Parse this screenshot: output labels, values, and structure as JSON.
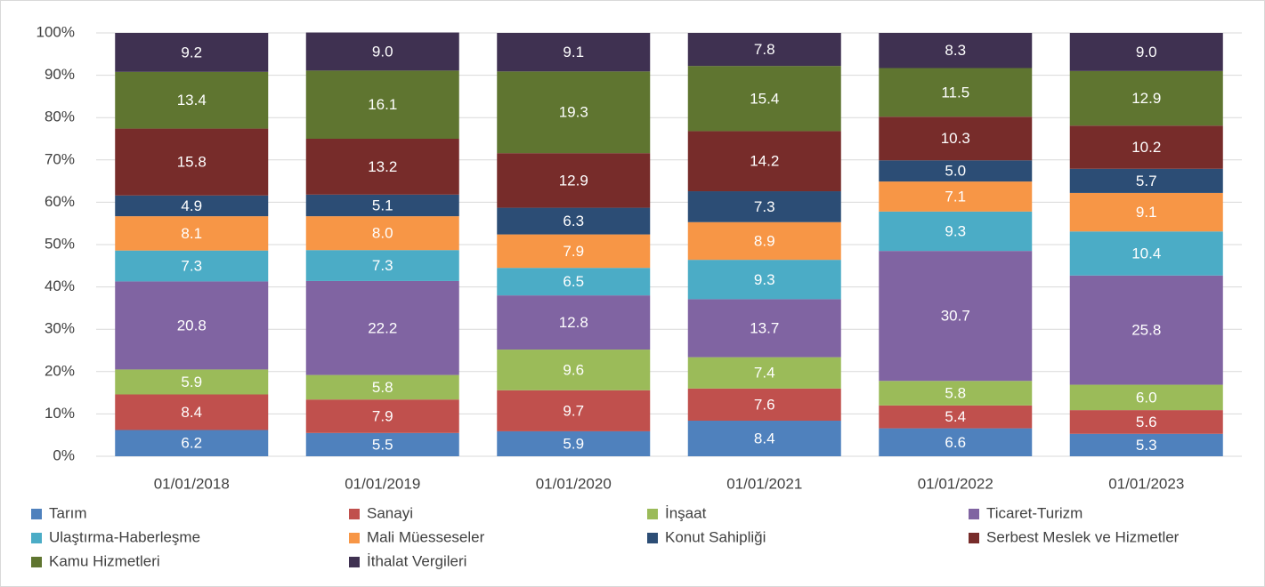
{
  "chart_data": {
    "type": "stacked_bar",
    "categories": [
      "01/01/2018",
      "01/01/2019",
      "01/01/2020",
      "01/01/2021",
      "01/01/2022",
      "01/01/2023"
    ],
    "series": [
      {
        "name": "Tarım",
        "color": "#4f81bd",
        "values": [
          6.2,
          5.5,
          5.9,
          8.4,
          6.6,
          5.3
        ],
        "value_labels": [
          "6.2",
          "5.5",
          "5.9",
          "8.4",
          "6.6",
          "5.3"
        ]
      },
      {
        "name": "Sanayi",
        "color": "#c0504d",
        "values": [
          8.4,
          7.9,
          9.7,
          7.6,
          5.4,
          5.6
        ],
        "value_labels": [
          "8.4",
          "7.9",
          "9.7",
          "7.6",
          "5.4",
          "5.6"
        ]
      },
      {
        "name": "İnşaat",
        "color": "#9bbb59",
        "values": [
          5.9,
          5.8,
          9.6,
          7.4,
          5.8,
          6
        ],
        "value_labels": [
          "5.9",
          "5.8",
          "9.6",
          "7.4",
          "5.8",
          "6.0"
        ]
      },
      {
        "name": "Ticaret-Turizm",
        "color": "#8064a2",
        "values": [
          20.8,
          22.2,
          12.8,
          13.7,
          30.7,
          25.8
        ],
        "value_labels": [
          "20.8",
          "22.2",
          "12.8",
          "13.7",
          "30.7",
          "25.8"
        ]
      },
      {
        "name": "Ulaştırma-Haberleşme",
        "color": "#4bacc6",
        "values": [
          7.3,
          7.3,
          6.5,
          9.3,
          9.3,
          10.4
        ],
        "value_labels": [
          "7.3",
          "7.3",
          "6.5",
          "9.3",
          "9.3",
          "10.4"
        ]
      },
      {
        "name": "Mali Müesseseler",
        "color": "#f79646",
        "values": [
          8.1,
          8,
          7.9,
          8.9,
          7.1,
          9.1
        ],
        "value_labels": [
          "8.1",
          "8.0",
          "7.9",
          "8.9",
          "7.1",
          "9.1"
        ]
      },
      {
        "name": "Konut Sahipliği",
        "color": "#2c4d75",
        "values": [
          4.9,
          5.1,
          6.3,
          7.3,
          5,
          5.7
        ],
        "value_labels": [
          "4.9",
          "5.1",
          "6.3",
          "7.3",
          "5.0",
          "5.7"
        ]
      },
      {
        "name": "Serbest Meslek ve Hizmetler",
        "color": "#772c2a",
        "values": [
          15.8,
          13.2,
          12.9,
          14.2,
          10.3,
          10.2
        ],
        "value_labels": [
          "15.8",
          "13.2",
          "12.9",
          "14.2",
          "10.3",
          "10.2"
        ]
      },
      {
        "name": "Kamu Hizmetleri",
        "color": "#5f7530",
        "values": [
          13.4,
          16.1,
          19.3,
          15.4,
          11.5,
          12.9
        ],
        "value_labels": [
          "13.4",
          "16.1",
          "19.3",
          "15.4",
          "11.5",
          "12.9"
        ]
      },
      {
        "name": "İthalat Vergileri",
        "color": "#3f3151",
        "values": [
          9.2,
          9,
          9.1,
          7.8,
          8.3,
          9
        ],
        "value_labels": [
          "9.2",
          "9.0",
          "9.1",
          "7.8",
          "8.3",
          "9.0"
        ]
      }
    ],
    "ylim": [
      0,
      100
    ],
    "yticks": [
      {
        "value": 0,
        "label": "0%"
      },
      {
        "value": 10,
        "label": "10%"
      },
      {
        "value": 20,
        "label": "20%"
      },
      {
        "value": 30,
        "label": "30%"
      },
      {
        "value": 40,
        "label": "40%"
      },
      {
        "value": 50,
        "label": "50%"
      },
      {
        "value": 60,
        "label": "60%"
      },
      {
        "value": 70,
        "label": "70%"
      },
      {
        "value": 80,
        "label": "80%"
      },
      {
        "value": 90,
        "label": "90%"
      },
      {
        "value": 100,
        "label": "100%"
      }
    ],
    "grid": true,
    "legend": "bottom"
  }
}
